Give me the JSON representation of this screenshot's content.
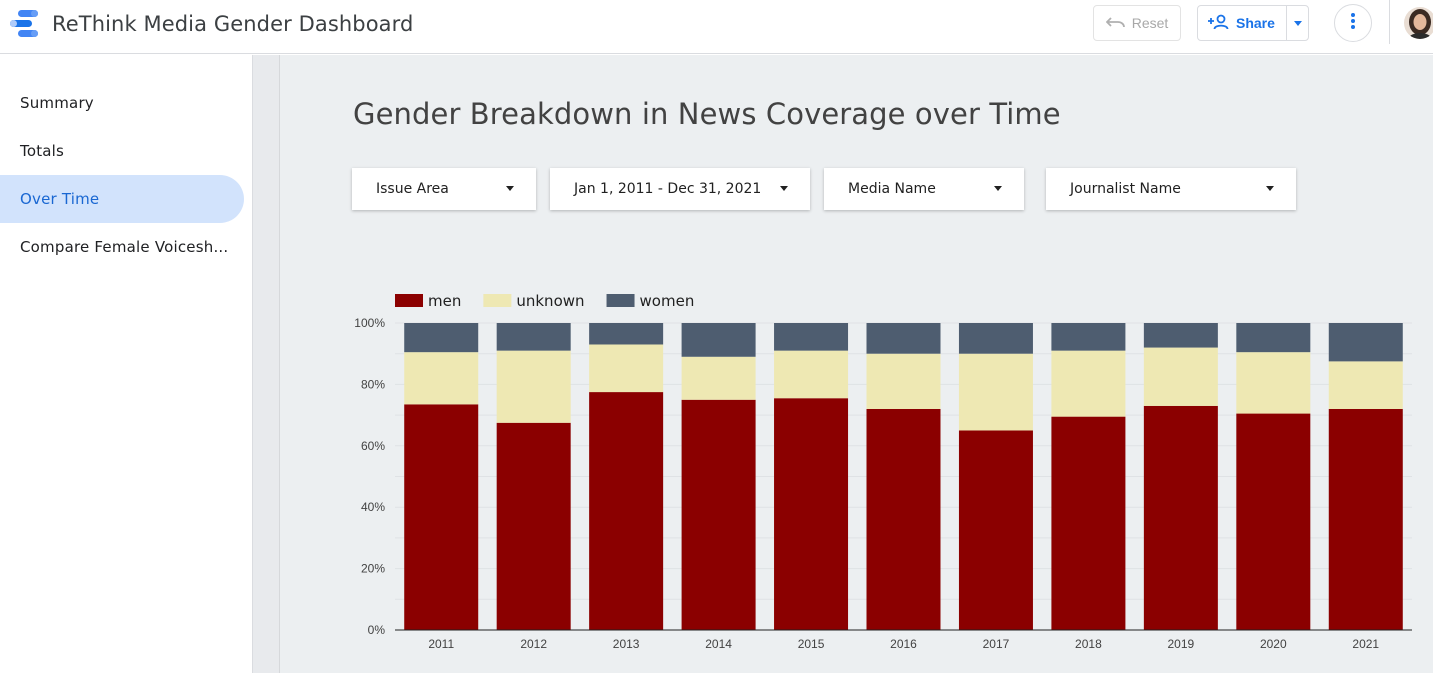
{
  "app": {
    "title": "ReThink Media Gender Dashboard",
    "reset_label": "Reset",
    "share_label": "Share"
  },
  "sidebar": {
    "items": [
      {
        "label": "Summary",
        "active": false
      },
      {
        "label": "Totals",
        "active": false
      },
      {
        "label": "Over Time",
        "active": true
      },
      {
        "label": "Compare Female Voicesh...",
        "active": false
      }
    ]
  },
  "page": {
    "title": "Gender Breakdown in News Coverage over Time"
  },
  "filters": [
    {
      "label": "Issue Area"
    },
    {
      "label": "Jan 1, 2011 - Dec 31, 2021"
    },
    {
      "label": "Media Name"
    },
    {
      "label": "Journalist Name"
    }
  ],
  "colors": {
    "men": "#8b0000",
    "unknown": "#eee8b3",
    "women": "#4e5d70",
    "accent": "#1a73e8"
  },
  "chart_data": {
    "type": "bar",
    "stacked": true,
    "percent": true,
    "categories": [
      "2011",
      "2012",
      "2013",
      "2014",
      "2015",
      "2016",
      "2017",
      "2018",
      "2019",
      "2020",
      "2021"
    ],
    "series": [
      {
        "name": "men",
        "values": [
          73.5,
          67.5,
          77.5,
          75,
          75.5,
          72,
          65,
          69.5,
          73,
          70.5,
          72
        ]
      },
      {
        "name": "unknown",
        "values": [
          17,
          23.5,
          15.5,
          14,
          15.5,
          18,
          25,
          21.5,
          19,
          20,
          15.5
        ]
      },
      {
        "name": "women",
        "values": [
          9.5,
          9,
          7,
          11,
          9,
          10,
          10,
          9,
          8,
          9.5,
          12.5
        ]
      }
    ],
    "y_ticks": [
      "0%",
      "20%",
      "40%",
      "60%",
      "80%",
      "100%"
    ],
    "ylim": [
      0,
      100
    ],
    "legend": "top-left",
    "grid": true
  }
}
